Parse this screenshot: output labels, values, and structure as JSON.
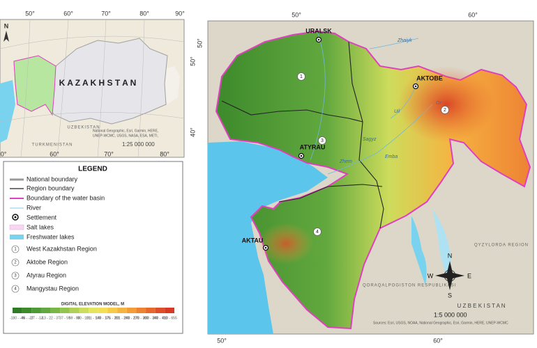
{
  "inset_map": {
    "country_label": "K A Z A K H S T A N",
    "top_ticks": [
      "50°",
      "60°",
      "70°",
      "80°",
      "90°"
    ],
    "bottom_ticks": [
      "0°",
      "60°",
      "70°",
      "80°"
    ],
    "left_ticks": [
      "N"
    ],
    "neighbors": [
      "UZBEKISTAN",
      "TURKMENISTAN"
    ],
    "sources": [
      "National Geographic, Esri, Garmin, HERE,",
      "UNEP-WCMC, USGS, NASA, ESA, METI,"
    ],
    "scale": "1:25 000 000"
  },
  "legend": {
    "title": "LEGEND",
    "items": [
      "National boundary",
      "Region boundary",
      "Boundary of the water basin",
      "River",
      "Settlement",
      "Salt lakes",
      "Freshwater lakes",
      "West Kazakhstan Region",
      "Aktobe Region",
      "Atyrau Region",
      "Mangystau Region"
    ],
    "region_numbers": [
      "1",
      "2",
      "3",
      "4"
    ],
    "elevation_title": "DIGITAL ELEVATION MODEL, M",
    "elevation_classes": [
      "-180 - -46",
      "-46 - -27",
      "-27 - -13",
      "-13 - 2",
      "2 - 37",
      "37 - 59",
      "59 - 80",
      "80 - 101",
      "101 - 140",
      "140 - 175",
      "175 - 201",
      "201 - 240",
      "240 - 270",
      "270 - 300",
      "300 - 340",
      "340 - 410",
      "410 - 655"
    ],
    "elevation_colors": [
      "#2f7a22",
      "#3d8a2c",
      "#4f9a35",
      "#62a83e",
      "#78b646",
      "#93c44e",
      "#b0d157",
      "#cddc5c",
      "#e6e35e",
      "#f2df55",
      "#f6cb4a",
      "#f5b441",
      "#f29c3a",
      "#ee8234",
      "#e8672e",
      "#e04e29",
      "#d63a24"
    ]
  },
  "main_map": {
    "top_ticks": [
      "50°",
      "60°"
    ],
    "left_ticks": [
      "50°",
      "50°",
      "40°"
    ],
    "bottom_ticks": [
      "50°",
      "60°"
    ],
    "cities": [
      "URALSK",
      "AKTOBE",
      "ATYRAU",
      "AKTAU"
    ],
    "region_numbers": [
      "1",
      "2",
      "3",
      "4"
    ],
    "rivers": [
      "Zhaiyk",
      "Emba",
      "Or",
      "Uil",
      "Sagyz",
      "Zhem"
    ],
    "areas": [
      "QYZYLORDA REGION",
      "QORAQALPOGISTON RESPUBLIKASI",
      "U Z B E K I S T A N"
    ],
    "compass": [
      "N",
      "E",
      "S",
      "W"
    ],
    "scale": "1:5 000 000",
    "sources": "Sources: Esri, USGS, NOAA, National Geographic, Esri, Garmin, HERE, UNEP-WCMC"
  }
}
